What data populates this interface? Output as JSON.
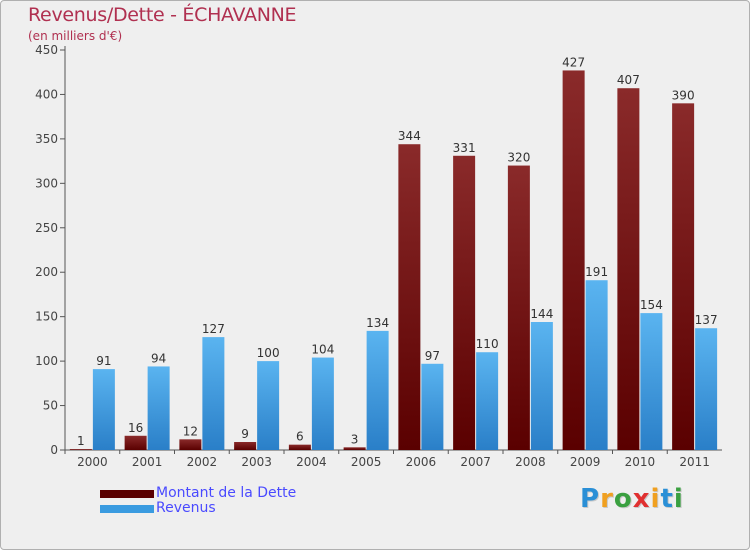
{
  "chart_data": {
    "type": "bar",
    "title": "Revenus/Dette - ÉCHAVANNE",
    "subtitle": "(en milliers d'€)",
    "xlabel": "",
    "ylabel": "",
    "ylim": [
      0,
      450
    ],
    "yticks": [
      0,
      50,
      100,
      150,
      200,
      250,
      300,
      350,
      400,
      450
    ],
    "grid": false,
    "legend_position": "bottom-left",
    "categories": [
      "2000",
      "2001",
      "2002",
      "2003",
      "2004",
      "2005",
      "2006",
      "2007",
      "2008",
      "2009",
      "2010",
      "2011"
    ],
    "series": [
      {
        "name": "Montant de la Dette",
        "color": "#7a1515",
        "values": [
          1,
          16,
          12,
          9,
          6,
          3,
          344,
          331,
          320,
          427,
          407,
          390
        ]
      },
      {
        "name": "Revenus",
        "color": "#3a9be0",
        "values": [
          91,
          94,
          127,
          100,
          104,
          134,
          97,
          110,
          144,
          191,
          154,
          137
        ]
      }
    ]
  },
  "logo": {
    "letters": [
      "P",
      "r",
      "o",
      "x",
      "i",
      "t",
      "i"
    ],
    "colors": [
      "#2a8fd6",
      "#f0a020",
      "#3aa040",
      "#e03030",
      "#f0a020",
      "#2a8fd6",
      "#3aa040"
    ]
  }
}
